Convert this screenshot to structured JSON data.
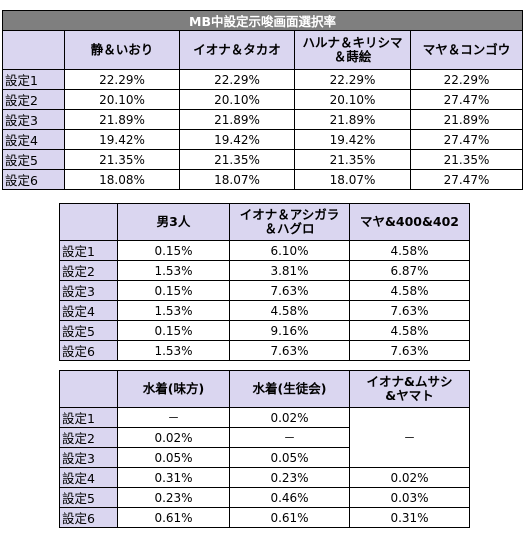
{
  "table1": {
    "title": "MB中設定示唆画面選択率",
    "columns": [
      "静＆いおり",
      "イオナ＆タカオ",
      "ハルナ＆キリシマ\n＆蒔絵",
      "マヤ＆コンゴウ"
    ],
    "rows": [
      {
        "label": "設定1",
        "values": [
          "22.29%",
          "22.29%",
          "22.29%",
          "22.29%"
        ]
      },
      {
        "label": "設定2",
        "values": [
          "20.10%",
          "20.10%",
          "20.10%",
          "27.47%"
        ]
      },
      {
        "label": "設定3",
        "values": [
          "21.89%",
          "21.89%",
          "21.89%",
          "21.89%"
        ]
      },
      {
        "label": "設定4",
        "values": [
          "19.42%",
          "19.42%",
          "19.42%",
          "27.47%"
        ]
      },
      {
        "label": "設定5",
        "values": [
          "21.35%",
          "21.35%",
          "21.35%",
          "21.35%"
        ]
      },
      {
        "label": "設定6",
        "values": [
          "18.08%",
          "18.07%",
          "18.07%",
          "27.47%"
        ]
      }
    ]
  },
  "table2": {
    "columns": [
      "男3人",
      "イオナ＆アシガラ\n＆ハグロ",
      "マヤ&400&402"
    ],
    "rows": [
      {
        "label": "設定1",
        "values": [
          "0.15%",
          "6.10%",
          "4.58%"
        ]
      },
      {
        "label": "設定2",
        "values": [
          "1.53%",
          "3.81%",
          "6.87%"
        ]
      },
      {
        "label": "設定3",
        "values": [
          "0.15%",
          "7.63%",
          "4.58%"
        ]
      },
      {
        "label": "設定4",
        "values": [
          "1.53%",
          "4.58%",
          "7.63%"
        ]
      },
      {
        "label": "設定5",
        "values": [
          "0.15%",
          "9.16%",
          "4.58%"
        ]
      },
      {
        "label": "設定6",
        "values": [
          "1.53%",
          "7.63%",
          "7.63%"
        ]
      }
    ]
  },
  "table3": {
    "columns": [
      "水着(味方)",
      "水着(生徒会)",
      "イオナ&ムサシ\n&ヤマト"
    ],
    "rows": [
      {
        "label": "設定1",
        "values": [
          "－",
          "0.02%"
        ]
      },
      {
        "label": "設定2",
        "values": [
          "0.02%",
          "－"
        ]
      },
      {
        "label": "設定3",
        "values": [
          "0.05%",
          "0.05%"
        ]
      },
      {
        "label": "設定4",
        "values": [
          "0.31%",
          "0.23%",
          "0.02%"
        ]
      },
      {
        "label": "設定5",
        "values": [
          "0.23%",
          "0.46%",
          "0.03%"
        ]
      },
      {
        "label": "設定6",
        "values": [
          "0.61%",
          "0.61%",
          "0.31%"
        ]
      }
    ],
    "merged_value_settings_1_3": "－"
  }
}
